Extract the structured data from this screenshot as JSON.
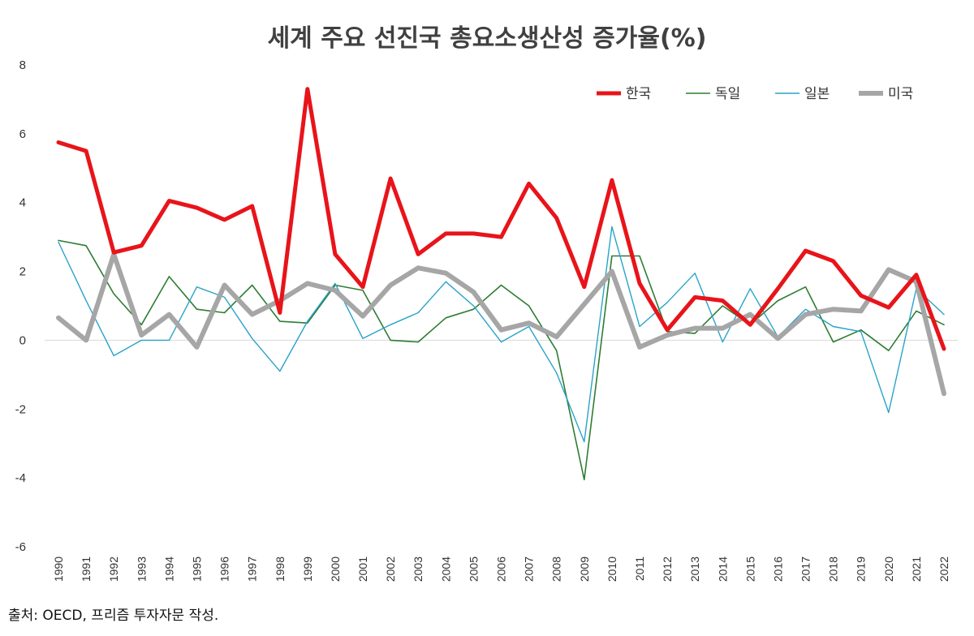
{
  "title": "세계 주요 선진국 총요소생산성 증가율(%)",
  "source": "출처: OECD, 프리즘 투자자문 작성.",
  "chart_data": {
    "type": "line",
    "title": "세계 주요 선진국 총요소생산성 증가율(%)",
    "xlabel": "",
    "ylabel": "",
    "ylim": [
      -6,
      8
    ],
    "yticks": [
      -6,
      -4,
      -2,
      0,
      2,
      4,
      6,
      8
    ],
    "categories": [
      "1990",
      "1991",
      "1992",
      "1993",
      "1994",
      "1995",
      "1996",
      "1997",
      "1998",
      "1999",
      "2000",
      "2001",
      "2002",
      "2003",
      "2004",
      "2005",
      "2006",
      "2007",
      "2008",
      "2009",
      "2010",
      "2011",
      "2012",
      "2013",
      "2014",
      "2015",
      "2016",
      "2017",
      "2018",
      "2019",
      "2020",
      "2021",
      "2022"
    ],
    "legend_position": "top-right",
    "grid": false,
    "series": [
      {
        "name": "한국",
        "color": "#e8141a",
        "width": 5,
        "values": [
          5.75,
          5.5,
          2.55,
          2.75,
          4.05,
          3.85,
          3.5,
          3.9,
          0.8,
          7.3,
          2.5,
          1.55,
          4.7,
          2.5,
          3.1,
          3.1,
          3.0,
          4.55,
          3.55,
          1.55,
          4.65,
          1.65,
          0.3,
          1.25,
          1.15,
          0.45,
          1.5,
          2.6,
          2.3,
          1.3,
          0.95,
          1.9,
          -0.25
        ]
      },
      {
        "name": "독일",
        "color": "#2e7d32",
        "width": 1.6,
        "values": [
          2.9,
          2.75,
          1.35,
          0.45,
          1.85,
          0.9,
          0.8,
          1.6,
          0.55,
          0.5,
          1.6,
          1.45,
          0.0,
          -0.05,
          0.65,
          0.9,
          1.6,
          1.0,
          -0.3,
          -4.05,
          2.45,
          2.45,
          0.25,
          0.2,
          1.0,
          0.45,
          1.15,
          1.55,
          -0.05,
          0.3,
          -0.3,
          0.85,
          0.45
        ]
      },
      {
        "name": "일본",
        "color": "#29a3c9",
        "width": 1.4,
        "values": [
          2.85,
          1.15,
          -0.45,
          0.0,
          0.0,
          1.55,
          1.25,
          0.05,
          -0.9,
          0.55,
          1.65,
          0.05,
          0.45,
          0.8,
          1.7,
          1.0,
          -0.05,
          0.4,
          -0.95,
          -2.95,
          3.3,
          0.4,
          1.1,
          1.95,
          -0.05,
          1.5,
          0.1,
          0.9,
          0.4,
          0.25,
          -2.1,
          1.5,
          0.75
        ]
      },
      {
        "name": "미국",
        "color": "#a6a6a6",
        "width": 6,
        "values": [
          0.65,
          0.0,
          2.5,
          0.15,
          0.75,
          -0.2,
          1.6,
          0.75,
          1.15,
          1.65,
          1.45,
          0.7,
          1.6,
          2.1,
          1.95,
          1.4,
          0.3,
          0.5,
          0.1,
          1.05,
          2.0,
          -0.2,
          0.15,
          0.35,
          0.35,
          0.75,
          0.05,
          0.75,
          0.9,
          0.85,
          2.05,
          1.7,
          -1.55
        ]
      }
    ]
  }
}
